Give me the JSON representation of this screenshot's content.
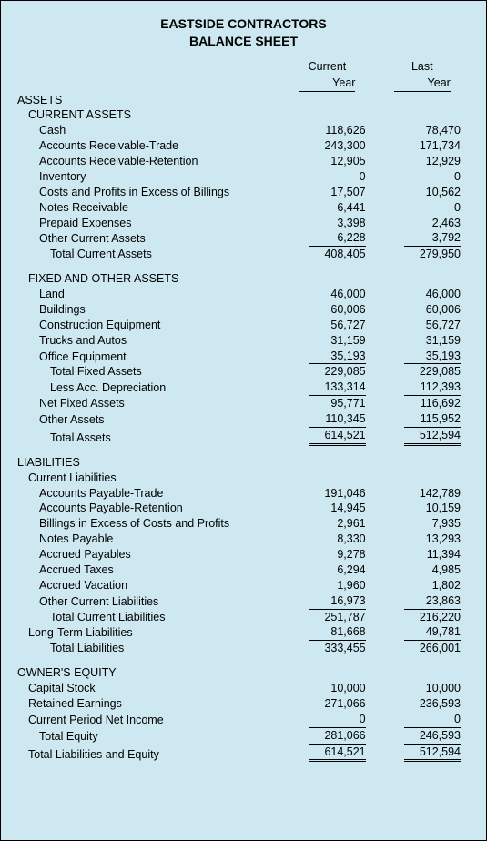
{
  "company": "EASTSIDE CONTRACTORS",
  "report": "BALANCE SHEET",
  "col_headers": {
    "c1a": "Current",
    "c1b": "Year",
    "c2a": "Last",
    "c2b": "Year"
  },
  "sections": {
    "assets": "ASSETS",
    "current_assets": "CURRENT ASSETS",
    "fixed_assets": "FIXED AND OTHER ASSETS",
    "liabilities": "LIABILITIES",
    "current_liab": "Current Liabilities",
    "equity": "OWNER'S EQUITY"
  },
  "rows": {
    "cash": {
      "label": "Cash",
      "cy": "118,626",
      "ly": "78,470"
    },
    "ar_trade": {
      "label": "Accounts Receivable-Trade",
      "cy": "243,300",
      "ly": "171,734"
    },
    "ar_ret": {
      "label": "Accounts Receivable-Retention",
      "cy": "12,905",
      "ly": "12,929"
    },
    "inventory": {
      "label": "Inventory",
      "cy": "0",
      "ly": "0"
    },
    "cost_excess": {
      "label": "Costs and Profits in Excess of Billings",
      "cy": "17,507",
      "ly": "10,562"
    },
    "notes_recv": {
      "label": "Notes Receivable",
      "cy": "6,441",
      "ly": "0"
    },
    "prepaid": {
      "label": "Prepaid Expenses",
      "cy": "3,398",
      "ly": "2,463"
    },
    "other_ca": {
      "label": "Other Current Assets",
      "cy": "6,228",
      "ly": "3,792"
    },
    "total_ca": {
      "label": "Total Current Assets",
      "cy": "408,405",
      "ly": "279,950"
    },
    "land": {
      "label": "Land",
      "cy": "46,000",
      "ly": "46,000"
    },
    "buildings": {
      "label": "Buildings",
      "cy": "60,006",
      "ly": "60,006"
    },
    "constr_eq": {
      "label": "Construction Equipment",
      "cy": "56,727",
      "ly": "56,727"
    },
    "trucks": {
      "label": "Trucks and Autos",
      "cy": "31,159",
      "ly": "31,159"
    },
    "office_eq": {
      "label": "Office Equipment",
      "cy": "35,193",
      "ly": "35,193"
    },
    "total_fa": {
      "label": "Total Fixed Assets",
      "cy": "229,085",
      "ly": "229,085"
    },
    "less_dep": {
      "label": "Less Acc. Depreciation",
      "cy": "133,314",
      "ly": "112,393"
    },
    "net_fa": {
      "label": "Net Fixed Assets",
      "cy": "95,771",
      "ly": "116,692"
    },
    "other_assets": {
      "label": "Other Assets",
      "cy": "110,345",
      "ly": "115,952"
    },
    "total_assets": {
      "label": "Total Assets",
      "cy": "614,521",
      "ly": "512,594"
    },
    "ap_trade": {
      "label": "Accounts Payable-Trade",
      "cy": "191,046",
      "ly": "142,789"
    },
    "ap_ret": {
      "label": "Accounts Payable-Retention",
      "cy": "14,945",
      "ly": "10,159"
    },
    "bill_excess": {
      "label": "Billings in Excess of Costs and Profits",
      "cy": "2,961",
      "ly": "7,935"
    },
    "notes_pay": {
      "label": "Notes Payable",
      "cy": "8,330",
      "ly": "13,293"
    },
    "accr_pay": {
      "label": "Accrued Payables",
      "cy": "9,278",
      "ly": "11,394"
    },
    "accr_tax": {
      "label": "Accrued Taxes",
      "cy": "6,294",
      "ly": "4,985"
    },
    "accr_vac": {
      "label": "Accrued Vacation",
      "cy": "1,960",
      "ly": "1,802"
    },
    "other_cl": {
      "label": "Other Current Liabilities",
      "cy": "16,973",
      "ly": "23,863"
    },
    "total_cl": {
      "label": "Total Current Liabilities",
      "cy": "251,787",
      "ly": "216,220"
    },
    "lt_liab": {
      "label": "Long-Term Liabilities",
      "cy": "81,668",
      "ly": "49,781"
    },
    "total_liab": {
      "label": "Total Liabilities",
      "cy": "333,455",
      "ly": "266,001"
    },
    "cap_stock": {
      "label": "Capital Stock",
      "cy": "10,000",
      "ly": "10,000"
    },
    "ret_earn": {
      "label": "Retained Earnings",
      "cy": "271,066",
      "ly": "236,593"
    },
    "net_inc": {
      "label": "Current Period Net Income",
      "cy": "0",
      "ly": "0"
    },
    "total_eq": {
      "label": "Total Equity",
      "cy": "281,066",
      "ly": "246,593"
    },
    "total_le": {
      "label": "Total Liabilities and Equity",
      "cy": "614,521",
      "ly": "512,594"
    }
  },
  "colors": {
    "bg": "#cde8f0",
    "text": "#000000",
    "rule": "#000000"
  }
}
